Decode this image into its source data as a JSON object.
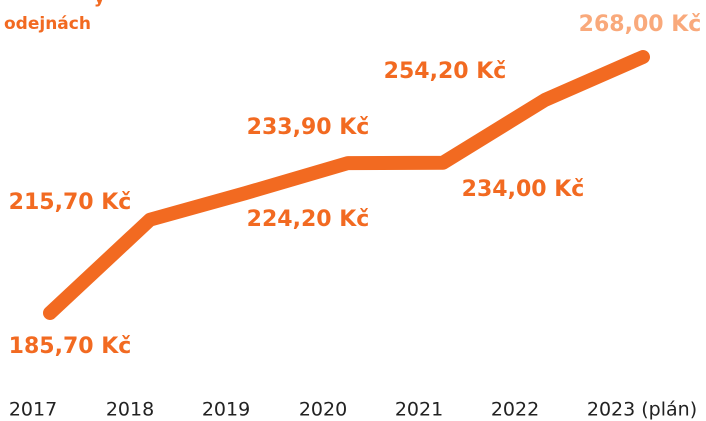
{
  "chart_data": {
    "type": "line",
    "title_lines": [
      "y",
      "odejnách"
    ],
    "categories": [
      "2017",
      "2018",
      "2019",
      "2020",
      "2021",
      "2022",
      "2023 (plán)"
    ],
    "values": [
      185.7,
      215.7,
      224.2,
      233.9,
      234.0,
      254.2,
      268.0
    ],
    "value_labels": [
      "185,70 Kč",
      "215,70 Kč",
      "224,20 Kč",
      "233,90 Kč",
      "234,00 Kč",
      "254,20 Kč",
      "268,00 Kč"
    ],
    "color": "#f26a21",
    "plan_color": "#f9a97b",
    "plan_category_color": "#9a9a9a"
  }
}
